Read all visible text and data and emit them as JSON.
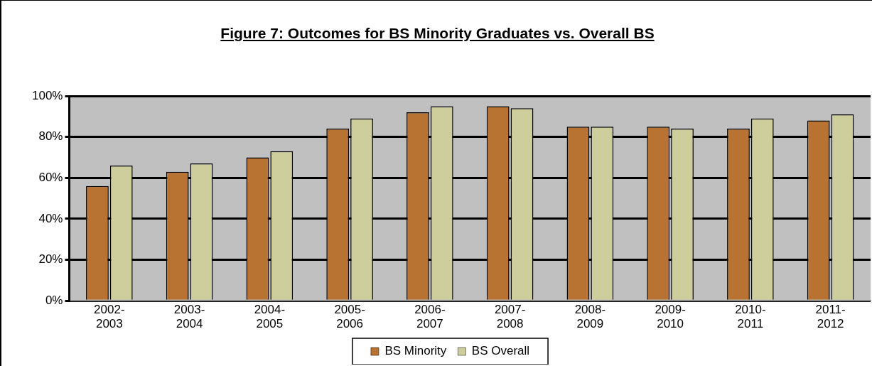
{
  "chart_data": {
    "type": "bar",
    "title": "Figure 7:  Outcomes for BS Minority Graduates vs. Overall BS",
    "categories": [
      "2002-2003",
      "2003-2004",
      "2004-2005",
      "2005-2006",
      "2006-2007",
      "2007-2008",
      "2008-2009",
      "2009-2010",
      "2010-2011",
      "2011-2012"
    ],
    "series": [
      {
        "name": "BS Minority",
        "color": "#b87333",
        "values": [
          56,
          63,
          70,
          84,
          92,
          95,
          85,
          85,
          84,
          88
        ]
      },
      {
        "name": "BS Overall",
        "color": "#cece9c",
        "values": [
          66,
          67,
          73,
          89,
          95,
          94,
          85,
          84,
          89,
          91
        ]
      }
    ],
    "ylim": [
      0,
      100
    ],
    "yticks": [
      {
        "value": 0,
        "label": "0%"
      },
      {
        "value": 20,
        "label": "20%"
      },
      {
        "value": 40,
        "label": "40%"
      },
      {
        "value": 60,
        "label": "60%"
      },
      {
        "value": 80,
        "label": "80%"
      },
      {
        "value": 100,
        "label": "100%"
      }
    ],
    "grid": "y",
    "legend": "bottom"
  }
}
